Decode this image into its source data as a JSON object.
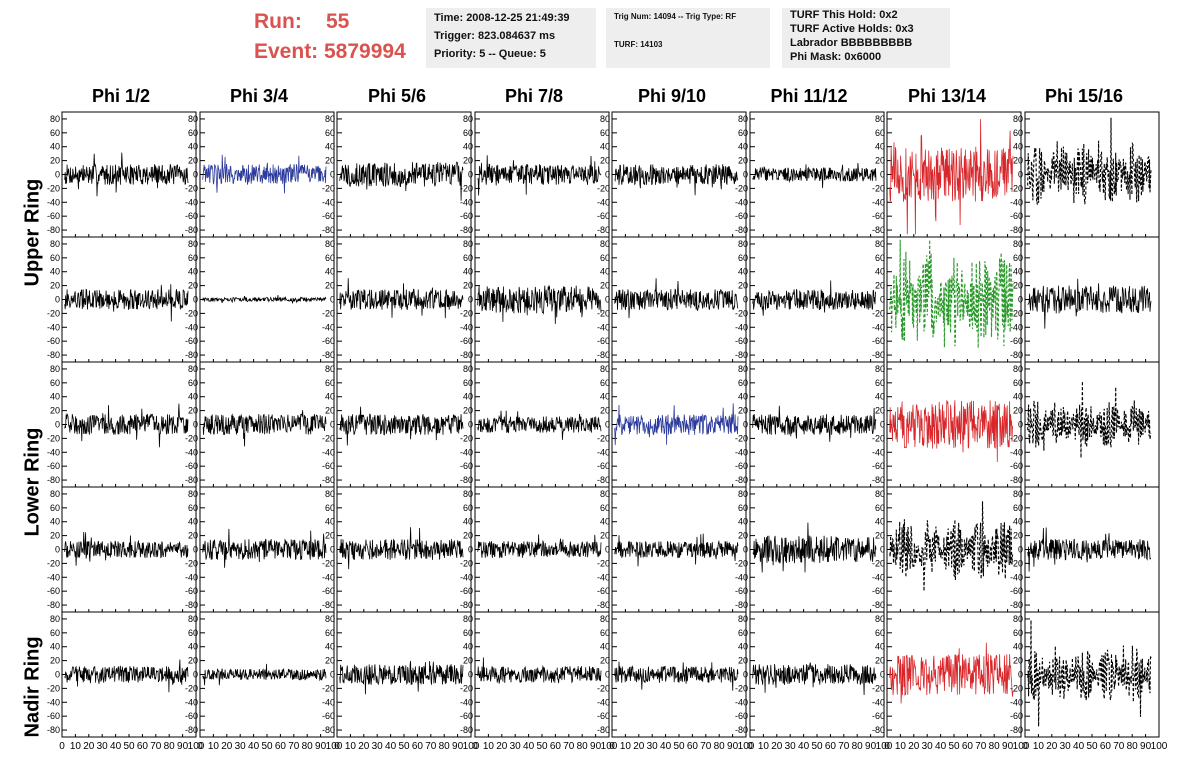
{
  "header": {
    "run_label": "Run:",
    "run_value": "55",
    "event_label": "Event:",
    "event_value": "5879994",
    "time_box": [
      "Time: 2008-12-25 21:49:39",
      "Trigger: 823.084637 ms",
      "Priority: 5 -- Queue: 5"
    ],
    "trig_box": [
      "Trig Num: 14094 -- Trig Type: RF",
      "TURF: 14103"
    ],
    "turf_box": [
      "TURF This Hold: 0x2",
      "TURF Active Holds: 0x3",
      "Labrador BBBBBBBBB",
      "Phi Mask: 0x6000"
    ]
  },
  "columns": [
    "Phi 1/2",
    "Phi 3/4",
    "Phi 5/6",
    "Phi 7/8",
    "Phi 9/10",
    "Phi 11/12",
    "Phi 13/14",
    "Phi 15/16"
  ],
  "ring_labels": [
    "Upper Ring",
    "Lower Ring",
    "Nadir Ring"
  ],
  "y_ticks": [
    "80",
    "60",
    "40",
    "20",
    "0",
    "-20",
    "-40",
    "-60",
    "-80"
  ],
  "x_ticks": [
    "0",
    "10",
    "20",
    "30",
    "40",
    "50",
    "60",
    "70",
    "80",
    "90",
    "100"
  ],
  "colors": {
    "text_red": "#d9534f",
    "trace_black": "#000000",
    "trace_blue": "#2b3a9b",
    "trace_red": "#d8262a",
    "trace_green": "#2a9a2a",
    "info_bg": "#eeeeee"
  },
  "chart_data": {
    "type": "line",
    "xlim": [
      0,
      100
    ],
    "ylim": [
      -90,
      90
    ],
    "panel_rows": 5,
    "panel_cols": 8,
    "row_style": [
      [
        "solid",
        "solid",
        "solid",
        "solid",
        "solid",
        "solid",
        "solid",
        "dashed"
      ],
      [
        "solid",
        "solid",
        "solid",
        "solid",
        "solid",
        "solid",
        "dashed",
        "solid"
      ],
      [
        "solid",
        "solid",
        "solid",
        "solid",
        "solid",
        "solid",
        "solid",
        "dashed"
      ],
      [
        "solid",
        "solid",
        "solid",
        "solid",
        "solid",
        "solid",
        "dashed",
        "solid"
      ],
      [
        "solid",
        "solid",
        "solid",
        "solid",
        "solid",
        "solid",
        "solid",
        "dashed"
      ]
    ],
    "row_color": [
      [
        "black",
        "blue",
        "black",
        "black",
        "black",
        "black",
        "red",
        "black"
      ],
      [
        "black",
        "black",
        "black",
        "black",
        "black",
        "black",
        "green",
        "black"
      ],
      [
        "black",
        "black",
        "black",
        "black",
        "blue",
        "black",
        "red",
        "black"
      ],
      [
        "black",
        "black",
        "black",
        "black",
        "black",
        "black",
        "black",
        "black"
      ],
      [
        "black",
        "black",
        "black",
        "black",
        "black",
        "black",
        "red",
        "black"
      ]
    ],
    "approx_amplitude": [
      [
        15,
        15,
        18,
        15,
        15,
        10,
        40,
        45
      ],
      [
        15,
        3,
        15,
        20,
        15,
        15,
        70,
        20
      ],
      [
        15,
        15,
        15,
        12,
        15,
        15,
        35,
        35
      ],
      [
        12,
        15,
        15,
        12,
        12,
        20,
        45,
        15
      ],
      [
        12,
        8,
        15,
        12,
        12,
        15,
        30,
        40
      ]
    ]
  }
}
